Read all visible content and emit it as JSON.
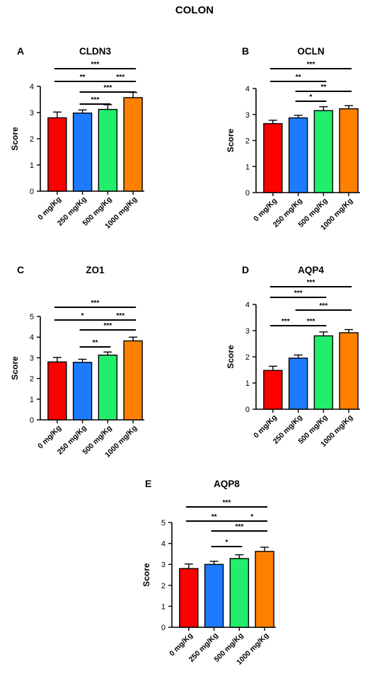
{
  "figure": {
    "title": "COLON"
  },
  "style": {
    "bar_colors": [
      "#ff0000",
      "#1e7bff",
      "#21ee6b",
      "#ff8000"
    ],
    "axis_color": "#000000"
  },
  "chart_data": [
    {
      "type": "bar",
      "panel": "A",
      "title": "CLDN3",
      "ylabel": "Score",
      "categories": [
        "0 mg/Kg",
        "250 mg/Kg",
        "500 mg/Kg",
        "1000 mg/Kg"
      ],
      "values": [
        2.8,
        2.98,
        3.12,
        3.57
      ],
      "errors": [
        0.22,
        0.12,
        0.18,
        0.2
      ],
      "ylim": [
        0,
        4
      ],
      "yticks": [
        0,
        1,
        2,
        3,
        4
      ],
      "significance": [
        {
          "from": 0,
          "to": 3,
          "label": "***"
        },
        {
          "from": 0,
          "to": 2,
          "label": "**"
        },
        {
          "from": 2,
          "to": 3,
          "label": "***"
        },
        {
          "from": 1,
          "to": 3,
          "label": "***"
        },
        {
          "from": 1,
          "to": 2,
          "label": "***"
        }
      ]
    },
    {
      "type": "bar",
      "panel": "B",
      "title": "OCLN",
      "ylabel": "Score",
      "categories": [
        "0 mg/Kg",
        "250 mg/Kg",
        "500 mg/Kg",
        "1000 mg/Kg"
      ],
      "values": [
        2.65,
        2.87,
        3.15,
        3.22
      ],
      "errors": [
        0.13,
        0.1,
        0.15,
        0.12
      ],
      "ylim": [
        0,
        4
      ],
      "yticks": [
        0,
        1,
        2,
        3,
        4
      ],
      "significance": [
        {
          "from": 0,
          "to": 3,
          "label": "***"
        },
        {
          "from": 0,
          "to": 2,
          "label": "**"
        },
        {
          "from": 1,
          "to": 3,
          "label": "**"
        },
        {
          "from": 1,
          "to": 2,
          "label": "*"
        }
      ]
    },
    {
      "type": "bar",
      "panel": "C",
      "title": "ZO1",
      "ylabel": "Score",
      "categories": [
        "0 mg/Kg",
        "250 mg/Kg",
        "500 mg/Kg",
        "1000 mg/Kg"
      ],
      "values": [
        2.8,
        2.78,
        3.13,
        3.82
      ],
      "errors": [
        0.22,
        0.15,
        0.15,
        0.18
      ],
      "ylim": [
        0,
        5
      ],
      "yticks": [
        0,
        1,
        2,
        3,
        4,
        5
      ],
      "significance": [
        {
          "from": 0,
          "to": 3,
          "label": "***"
        },
        {
          "from": 0,
          "to": 2,
          "label": "*"
        },
        {
          "from": 2,
          "to": 3,
          "label": "***"
        },
        {
          "from": 1,
          "to": 3,
          "label": "***"
        },
        {
          "from": 1,
          "to": 2,
          "label": "**"
        }
      ]
    },
    {
      "type": "bar",
      "panel": "D",
      "title": "AQP4",
      "ylabel": "Score",
      "categories": [
        "0 mg/Kg",
        "250 mg/Kg",
        "500 mg/Kg",
        "1000 mg/Kg"
      ],
      "values": [
        1.48,
        1.95,
        2.8,
        2.92
      ],
      "errors": [
        0.16,
        0.12,
        0.15,
        0.12
      ],
      "ylim": [
        0,
        4
      ],
      "yticks": [
        0,
        1,
        2,
        3,
        4
      ],
      "significance": [
        {
          "from": 0,
          "to": 3,
          "label": "***"
        },
        {
          "from": 0,
          "to": 2,
          "label": "***"
        },
        {
          "from": 1,
          "to": 3,
          "label": "***"
        },
        {
          "from": 0,
          "to": 1,
          "label": "***"
        },
        {
          "from": 1,
          "to": 2,
          "label": "***"
        }
      ]
    },
    {
      "type": "bar",
      "panel": "E",
      "title": "AQP8",
      "ylabel": "Score",
      "categories": [
        "0 mg/Kg",
        "250 mg/Kg",
        "500 mg/Kg",
        "1000 mg/Kg"
      ],
      "values": [
        2.8,
        3.0,
        3.28,
        3.62
      ],
      "errors": [
        0.22,
        0.15,
        0.18,
        0.2
      ],
      "ylim": [
        0,
        5
      ],
      "yticks": [
        0,
        1,
        2,
        3,
        4,
        5
      ],
      "significance": [
        {
          "from": 0,
          "to": 3,
          "label": "***"
        },
        {
          "from": 0,
          "to": 2,
          "label": "**"
        },
        {
          "from": 2,
          "to": 3,
          "label": "*"
        },
        {
          "from": 1,
          "to": 3,
          "label": "***"
        },
        {
          "from": 1,
          "to": 2,
          "label": "*"
        }
      ]
    }
  ]
}
